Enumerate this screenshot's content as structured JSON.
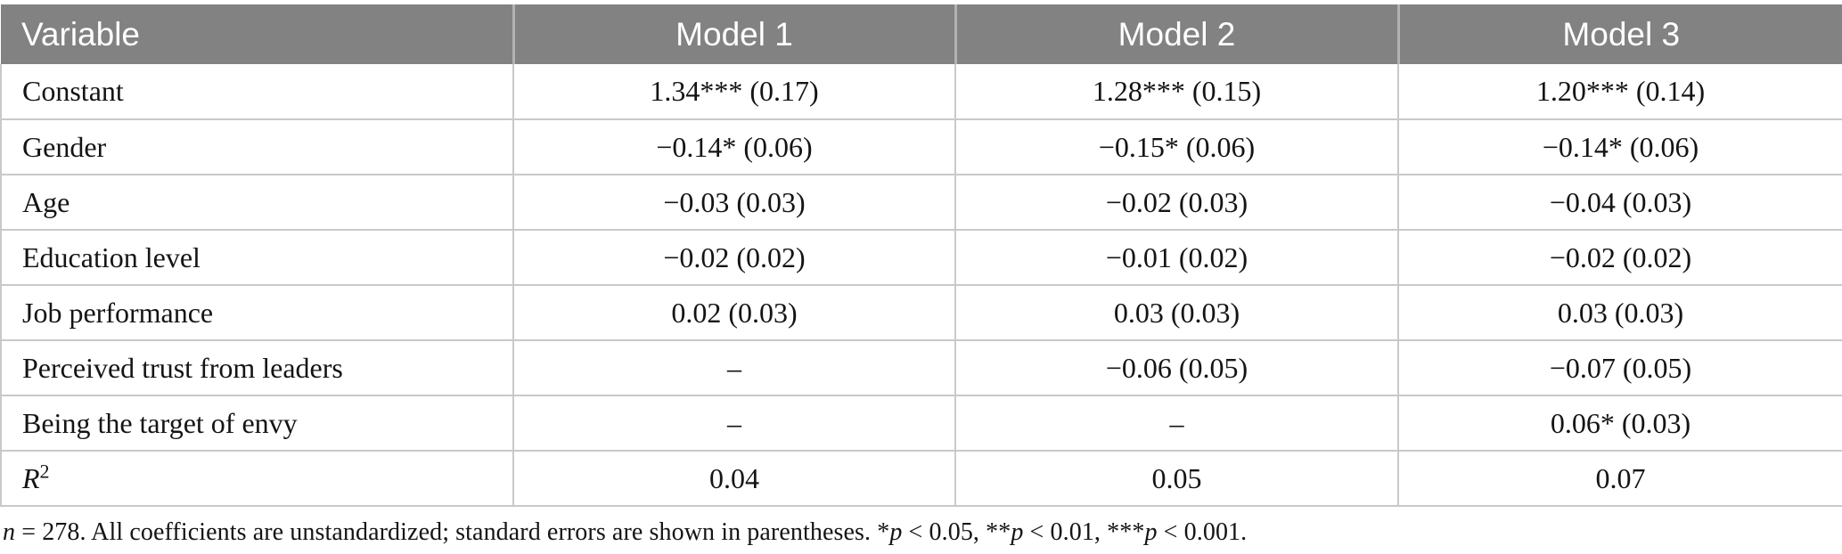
{
  "colors": {
    "header_bg": "#828282",
    "header_text": "#ffffff",
    "header_divider": "#b2b2b2",
    "border": "#c9c9c9",
    "text": "#141414",
    "page_bg": "#ffffff"
  },
  "chart_data": {
    "type": "table",
    "columns": [
      "Variable",
      "Model 1",
      "Model 2",
      "Model 3"
    ],
    "rows": [
      [
        "Constant",
        "1.34*** (0.17)",
        "1.28*** (0.15)",
        "1.20*** (0.14)"
      ],
      [
        "Gender",
        "−0.14* (0.06)",
        "−0.15* (0.06)",
        "−0.14* (0.06)"
      ],
      [
        "Age",
        "−0.03 (0.03)",
        "−0.02 (0.03)",
        "−0.04 (0.03)"
      ],
      [
        "Education level",
        "−0.02 (0.02)",
        "−0.01 (0.02)",
        "−0.02 (0.02)"
      ],
      [
        "Job performance",
        "0.02 (0.03)",
        "0.03 (0.03)",
        "0.03 (0.03)"
      ],
      [
        "Perceived trust from leaders",
        "–",
        "−0.06 (0.05)",
        "−0.07 (0.05)"
      ],
      [
        "Being the target of envy",
        "–",
        "–",
        "0.06* (0.03)"
      ],
      [
        "R²",
        "0.04",
        "0.05",
        "0.07"
      ]
    ]
  },
  "table": {
    "headers": {
      "variable": "Variable",
      "model1": "Model 1",
      "model2": "Model 2",
      "model3": "Model 3"
    },
    "rows": [
      {
        "label": "Constant",
        "m1": "1.34*** (0.17)",
        "m2": "1.28*** (0.15)",
        "m3": "1.20*** (0.14)"
      },
      {
        "label": "Gender",
        "m1": "−0.14* (0.06)",
        "m2": "−0.15* (0.06)",
        "m3": "−0.14* (0.06)"
      },
      {
        "label": "Age",
        "m1": "−0.03 (0.03)",
        "m2": "−0.02 (0.03)",
        "m3": "−0.04 (0.03)"
      },
      {
        "label": "Education level",
        "m1": "−0.02 (0.02)",
        "m2": "−0.01 (0.02)",
        "m3": "−0.02 (0.02)"
      },
      {
        "label": "Job performance",
        "m1": "0.02 (0.03)",
        "m2": "0.03 (0.03)",
        "m3": "0.03 (0.03)"
      },
      {
        "label": "Perceived trust from leaders",
        "m1": "–",
        "m2": "−0.06 (0.05)",
        "m3": "−0.07 (0.05)"
      },
      {
        "label": "Being the target of envy",
        "m1": "–",
        "m2": "–",
        "m3": "0.06* (0.03)"
      },
      {
        "label_main": "R",
        "label_sup": "2",
        "m1": "0.04",
        "m2": "0.05",
        "m3": "0.07"
      }
    ]
  },
  "footnote": {
    "seg_n": "n",
    "seg_1": " = 278. All coefficients are unstandardized; standard errors are shown in parentheses. *",
    "seg_p1": "p",
    "seg_2": " < 0.05, **",
    "seg_p2": "p",
    "seg_3": " < 0.01, ***",
    "seg_p3": "p",
    "seg_4": " < 0.001."
  }
}
